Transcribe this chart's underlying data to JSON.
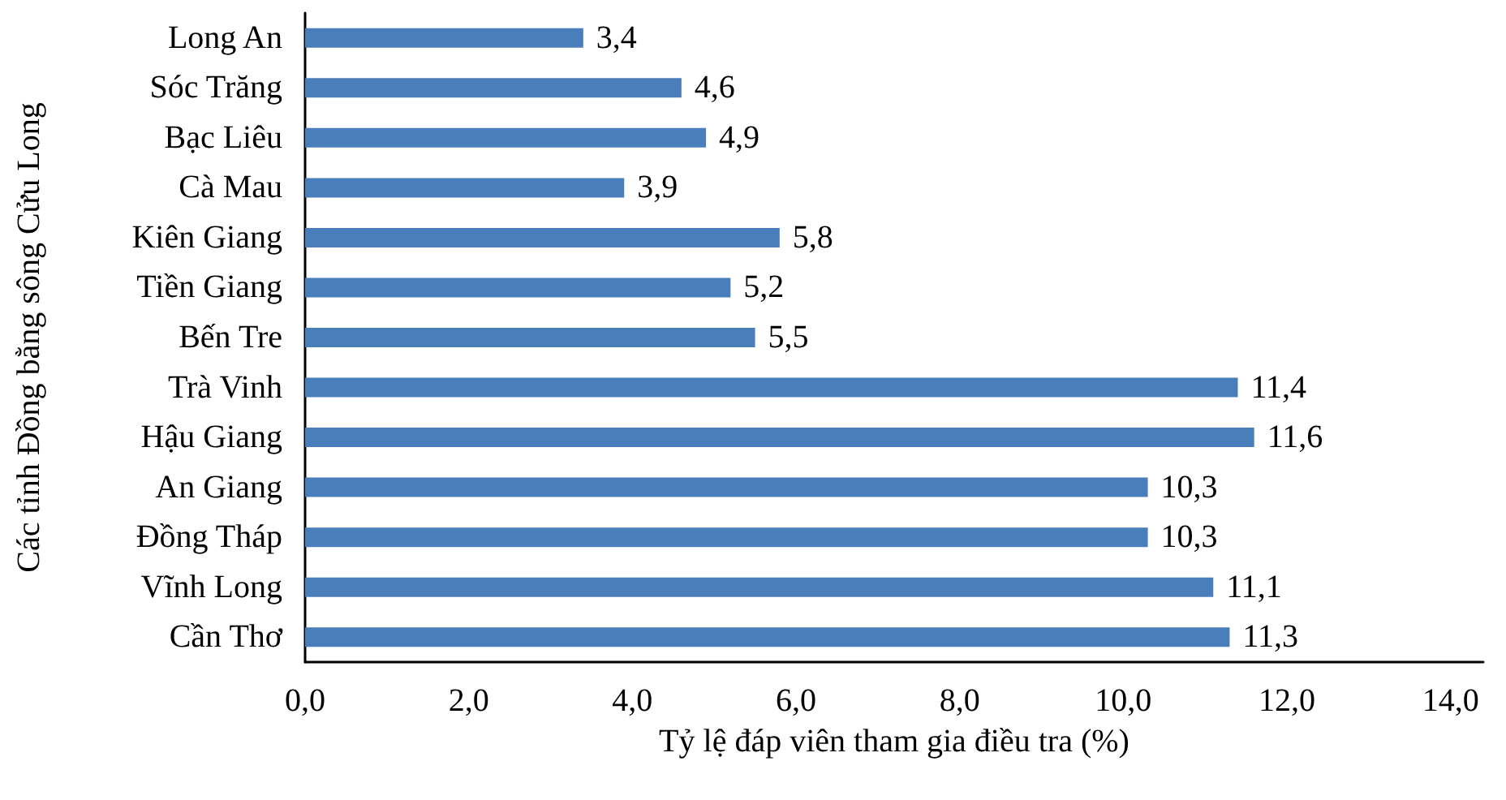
{
  "chart_data": {
    "type": "bar",
    "orientation": "horizontal",
    "categories": [
      "Long An",
      "Sóc Trăng",
      "Bạc Liêu",
      "Cà Mau",
      "Kiên Giang",
      "Tiền Giang",
      "Bến Tre",
      "Trà Vinh",
      "Hậu Giang",
      "An Giang",
      "Đồng Tháp",
      "Vĩnh Long",
      "Cần Thơ"
    ],
    "values": [
      3.4,
      4.6,
      4.9,
      3.9,
      5.8,
      5.2,
      5.5,
      11.4,
      11.6,
      10.3,
      10.3,
      11.1,
      11.3
    ],
    "value_labels": [
      "3,4",
      "4,6",
      "4,9",
      "3,9",
      "5,8",
      "5,2",
      "5,5",
      "11,4",
      "11,6",
      "10,3",
      "10,3",
      "11,1",
      "11,3"
    ],
    "color": "#4a7ebb",
    "xlim": [
      0,
      14.4
    ],
    "xticks": [
      {
        "value": 0,
        "label": "0,0"
      },
      {
        "value": 2,
        "label": "2,0"
      },
      {
        "value": 4,
        "label": "4,0"
      },
      {
        "value": 6,
        "label": "6,0"
      },
      {
        "value": 8,
        "label": "8,0"
      },
      {
        "value": 10,
        "label": "10,0"
      },
      {
        "value": 12,
        "label": "12,0"
      },
      {
        "value": 14,
        "label": "14,0"
      }
    ],
    "xlabel": "Tỷ lệ đáp viên tham gia điều tra (%)",
    "ylabel": "Các tỉnh Đồng bằng sông Cửu Long"
  }
}
